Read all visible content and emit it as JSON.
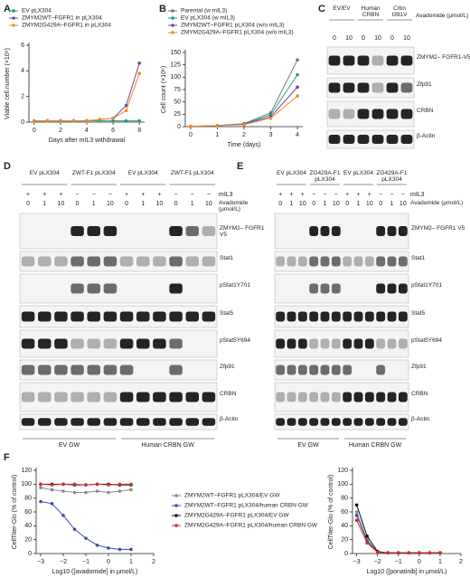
{
  "panel_labels": [
    "A",
    "B",
    "C",
    "D",
    "E",
    "F"
  ],
  "chart_data": [
    {
      "type": "line",
      "ylabel": "Viable cell number (×10⁶)",
      "xlabel": "Days after mIL3 withdrawal",
      "x": [
        0,
        1,
        2,
        3,
        4,
        5,
        6,
        7,
        8
      ],
      "xlim": [
        -0.4,
        8.4
      ],
      "xticks": [
        0,
        2,
        4,
        6,
        8
      ],
      "ylim": [
        0,
        6
      ],
      "yticks": [
        0,
        2,
        4,
        6
      ],
      "series": [
        {
          "name": "EV pLX304",
          "color": "#1a9e8f",
          "values": [
            0.1,
            0.1,
            0.1,
            0.1,
            0.1,
            0.1,
            0.1,
            0.1,
            0.1
          ]
        },
        {
          "name": "ZMYM2WT–FGFR1 in pLX304",
          "color": "#6a4c9c",
          "values": [
            0.1,
            0.1,
            0.1,
            0.1,
            0.1,
            0.2,
            0.3,
            1.3,
            4.6
          ]
        },
        {
          "name": "ZMYM2G429A–FGFR1 in pLX304",
          "color": "#f08a24",
          "values": [
            0.1,
            0.1,
            0.1,
            0.1,
            0.1,
            0.2,
            0.3,
            0.9,
            3.8
          ]
        }
      ]
    },
    {
      "type": "line",
      "ylabel": "Cell count (×10⁶)",
      "xlabel": "Time (days)",
      "x": [
        0,
        1,
        2,
        3,
        4
      ],
      "xlim": [
        -0.2,
        4.2
      ],
      "xticks": [
        0,
        1,
        2,
        3,
        4
      ],
      "ylim": [
        0,
        150
      ],
      "yticks": [
        0,
        25,
        50,
        75,
        100,
        125,
        150
      ],
      "series": [
        {
          "name": "Parental (w mIL3)",
          "color": "#777777",
          "values": [
            0.5,
            2,
            6,
            28,
            135
          ]
        },
        {
          "name": "EV pLX304 (w mIL3)",
          "color": "#1a9e8f",
          "values": [
            0.5,
            2,
            5,
            24,
            105
          ]
        },
        {
          "name": "ZMYM2WT–FGFR1 pLX304 (w/o mIL3)",
          "color": "#6a4c9c",
          "values": [
            0.5,
            2,
            5,
            20,
            80
          ]
        },
        {
          "name": "ZMYM2G429A–FGFR1 pLX304 (w/o mIL3)",
          "color": "#f08a24",
          "values": [
            0.5,
            2,
            4,
            17,
            62
          ]
        }
      ]
    },
    {
      "type": "line",
      "ylabel": "CellTiter-Glo (% of control)",
      "xlabel": "Log10 ([avadomide] in μmol/L)",
      "x": [
        -3,
        -2.5,
        -2,
        -1.5,
        -1,
        -0.5,
        0,
        0.5,
        1
      ],
      "xlim": [
        -3.2,
        2
      ],
      "xticks": [
        {
          "value": -3,
          "label": "−3"
        },
        {
          "value": -2,
          "label": "−2"
        },
        {
          "value": -1,
          "label": "−1"
        },
        0,
        1,
        2
      ],
      "ylim": [
        0,
        120
      ],
      "yticks": [
        0,
        20,
        40,
        60,
        80,
        100,
        120
      ],
      "series": [
        {
          "name": "ZMYM2WT–FGFR1 pLX304/EV GW",
          "color": "#8a8a8a",
          "values": [
            95,
            92,
            90,
            88,
            88,
            90,
            88,
            90,
            92
          ]
        },
        {
          "name": "ZMYM2WT–FGFR1 pLX304/human CRBN GW",
          "color": "#3b4bb0",
          "values": [
            75,
            72,
            55,
            35,
            22,
            12,
            8,
            6,
            6
          ]
        },
        {
          "name": "ZMYM2G429A–FGFR1 pLX304/EV GW",
          "color": "#111111",
          "values": [
            100,
            100,
            100,
            99,
            99,
            100,
            100,
            99,
            99
          ]
        },
        {
          "name": "ZMYM2G429A–FGFR1 pLX304/human CRBN GW",
          "color": "#d0302a",
          "values": [
            100,
            99,
            100,
            100,
            99,
            100,
            99,
            100,
            100
          ]
        }
      ]
    },
    {
      "type": "line",
      "ylabel": "CellTiter-Glo (% of control)",
      "xlabel": "Log10 ([ponatinib] in μmol/L)",
      "x": [
        -3,
        -2.5,
        -2,
        -1.5,
        -1,
        -0.5,
        0,
        0.5,
        1
      ],
      "xlim": [
        -3.2,
        2
      ],
      "xticks": [
        {
          "value": -3,
          "label": "−3"
        },
        {
          "value": -2,
          "label": "−2"
        },
        {
          "value": -1,
          "label": "−1"
        },
        0,
        1,
        2
      ],
      "ylim": [
        0,
        120
      ],
      "yticks": [
        0,
        20,
        40,
        60,
        80,
        100,
        120
      ],
      "series": [
        {
          "color": "#8a8a8a",
          "values": [
            60,
            20,
            2,
            1,
            1,
            1,
            1,
            1,
            1
          ]
        },
        {
          "color": "#3b4bb0",
          "values": [
            55,
            18,
            2,
            1,
            1,
            1,
            1,
            1,
            1
          ]
        },
        {
          "color": "#111111",
          "values": [
            70,
            25,
            3,
            1,
            1,
            1,
            1,
            1,
            1
          ]
        },
        {
          "color": "#d0302a",
          "values": [
            48,
            15,
            2,
            1,
            1,
            1,
            1,
            1,
            1
          ]
        }
      ]
    }
  ],
  "blots": {
    "C": {
      "groups": [
        "EV/EV",
        "Human CRBN",
        "Crbn I391V"
      ],
      "treatment": "Avadomide (μmol/L)",
      "doses": [
        0,
        10,
        0,
        10,
        0,
        10
      ],
      "rows": [
        "ZMYM2– FGFR1-V5",
        "Zfp91",
        "CRBN",
        "β-Actin"
      ]
    },
    "D": {
      "groups": [
        "EV pLX304",
        "ZWT-F1 pLX304",
        "EV pLX304",
        "ZWT-F1 pLX304"
      ],
      "mil3_label": "mIL3",
      "mil3": [
        "+",
        "+",
        "+",
        "−",
        "−",
        "−",
        "+",
        "+",
        "+",
        "−",
        "−",
        "−"
      ],
      "treatment": "Avadomide (μmol/L)",
      "doses": [
        0,
        1,
        10,
        0,
        1,
        10,
        0,
        1,
        10,
        0,
        1,
        10
      ],
      "rows": [
        "ZMYM2– FGFR1 V5",
        "Stat1",
        "pStat1Y701",
        "Stat5",
        "pStat5Y694",
        "Zfp91",
        "CRBN",
        "β-Actin"
      ],
      "bottom": [
        "EV GW",
        "Human CRBN GW"
      ]
    },
    "E": {
      "groups": [
        "EV pLX304",
        "ZG429A-F1 pLX304",
        "EV pLX304",
        "ZG429A-F1 pLX304"
      ],
      "mil3_label": "mIL3",
      "mil3": [
        "+",
        "+",
        "+",
        "−",
        "−",
        "−",
        "+",
        "+",
        "+",
        "−",
        "−",
        "−"
      ],
      "treatment": "Avadomide (μmol/L)",
      "doses": [
        0,
        1,
        10,
        0,
        1,
        10,
        0,
        1,
        10,
        0,
        1,
        10
      ],
      "rows": [
        "ZMYM2– FGFR1 V5",
        "Stat1",
        "pStat1Y701",
        "Stat5",
        "pStat5Y694",
        "Zfp91",
        "CRBN",
        "β-Actin"
      ],
      "bottom": [
        "EV GW",
        "Human CRBN GW"
      ]
    }
  }
}
